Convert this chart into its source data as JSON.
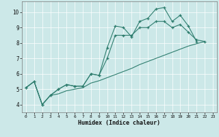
{
  "xlabel": "Humidex (Indice chaleur)",
  "xlim": [
    -0.5,
    23.5
  ],
  "ylim": [
    3.5,
    10.7
  ],
  "xticks": [
    0,
    1,
    2,
    3,
    4,
    5,
    6,
    7,
    8,
    9,
    10,
    11,
    12,
    13,
    14,
    15,
    16,
    17,
    18,
    19,
    20,
    21,
    22,
    23
  ],
  "yticks": [
    4,
    5,
    6,
    7,
    8,
    9,
    10
  ],
  "bg_color": "#cce8e8",
  "grid_color": "#ffffff",
  "line_color": "#2e7d6e",
  "line1_x": [
    0,
    1,
    2,
    3,
    4,
    5,
    6,
    7,
    8,
    9,
    10,
    11,
    12,
    13,
    14,
    15,
    16,
    17,
    18,
    19,
    20,
    21
  ],
  "line1_y": [
    5.1,
    5.5,
    4.0,
    4.6,
    5.0,
    5.3,
    5.2,
    5.2,
    6.0,
    5.9,
    7.7,
    9.1,
    9.0,
    8.4,
    9.4,
    9.6,
    10.2,
    10.3,
    9.4,
    9.8,
    9.1,
    8.1
  ],
  "line2_x": [
    0,
    1,
    2,
    3,
    4,
    5,
    6,
    7,
    8,
    9,
    10,
    11,
    12,
    13,
    14,
    15,
    16,
    17,
    18,
    19,
    20,
    21,
    22
  ],
  "line2_y": [
    5.1,
    5.5,
    4.0,
    4.6,
    5.0,
    5.3,
    5.2,
    5.2,
    6.0,
    5.9,
    7.0,
    8.5,
    8.5,
    8.5,
    9.0,
    9.0,
    9.4,
    9.4,
    9.0,
    9.2,
    8.7,
    8.2,
    8.1
  ],
  "line3_x": [
    0,
    1,
    2,
    3,
    4,
    5,
    6,
    7,
    8,
    9,
    10,
    11,
    12,
    13,
    14,
    15,
    16,
    17,
    18,
    19,
    20,
    21,
    22
  ],
  "line3_y": [
    5.1,
    5.5,
    4.0,
    4.6,
    4.7,
    4.9,
    5.0,
    5.1,
    5.4,
    5.55,
    5.75,
    5.95,
    6.15,
    6.35,
    6.6,
    6.8,
    7.0,
    7.2,
    7.4,
    7.6,
    7.8,
    7.95,
    8.1
  ]
}
